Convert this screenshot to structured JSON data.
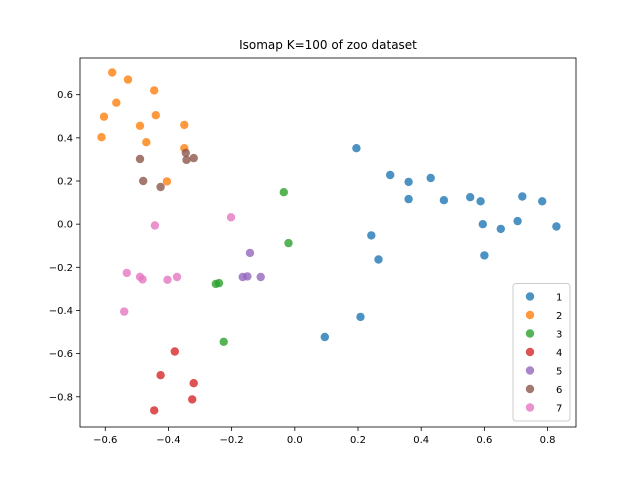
{
  "chart_data": {
    "type": "scatter",
    "title": "Isomap K=100 of zoo dataset",
    "xlabel": "",
    "ylabel": "",
    "xlim": [
      -0.68,
      0.89
    ],
    "ylim": [
      -0.94,
      0.77
    ],
    "xticks": [
      -0.6,
      -0.4,
      -0.2,
      0.0,
      0.2,
      0.4,
      0.6,
      0.8
    ],
    "xtick_labels": [
      "−0.6",
      "−0.4",
      "−0.2",
      "0.0",
      "0.2",
      "0.4",
      "0.6",
      "0.8"
    ],
    "yticks": [
      0.6,
      0.4,
      0.2,
      0.0,
      -0.2,
      -0.4,
      -0.6,
      -0.8
    ],
    "ytick_labels": [
      "0.6",
      "0.4",
      "0.2",
      "0.0",
      "−0.2",
      "−0.4",
      "−0.6",
      "−0.8"
    ],
    "grid": false,
    "legend_position": "lower-right",
    "series": [
      {
        "name": "1",
        "color": "#1f77b4",
        "points": [
          [
            0.195,
            0.352
          ],
          [
            0.302,
            0.228
          ],
          [
            0.36,
            0.196
          ],
          [
            0.43,
            0.214
          ],
          [
            0.36,
            0.116
          ],
          [
            0.472,
            0.111
          ],
          [
            0.555,
            0.125
          ],
          [
            0.588,
            0.106
          ],
          [
            0.72,
            0.128
          ],
          [
            0.783,
            0.106
          ],
          [
            0.242,
            -0.052
          ],
          [
            0.265,
            -0.164
          ],
          [
            0.595,
            0.0
          ],
          [
            0.652,
            -0.022
          ],
          [
            0.705,
            0.014
          ],
          [
            0.828,
            -0.011
          ],
          [
            0.6,
            -0.145
          ],
          [
            0.208,
            -0.43
          ],
          [
            0.095,
            -0.523
          ]
        ]
      },
      {
        "name": "2",
        "color": "#ff7f0e",
        "points": [
          [
            -0.578,
            0.703
          ],
          [
            -0.528,
            0.67
          ],
          [
            -0.565,
            0.563
          ],
          [
            -0.445,
            0.62
          ],
          [
            -0.604,
            0.498
          ],
          [
            -0.44,
            0.505
          ],
          [
            -0.49,
            0.456
          ],
          [
            -0.35,
            0.46
          ],
          [
            -0.612,
            0.403
          ],
          [
            -0.47,
            0.38
          ],
          [
            -0.35,
            0.352
          ],
          [
            -0.405,
            0.198
          ]
        ]
      },
      {
        "name": "3",
        "color": "#2ca02c",
        "points": [
          [
            -0.035,
            0.148
          ],
          [
            -0.02,
            -0.088
          ],
          [
            -0.24,
            -0.273
          ],
          [
            -0.25,
            -0.277
          ],
          [
            -0.225,
            -0.545
          ]
        ]
      },
      {
        "name": "4",
        "color": "#d62728",
        "points": [
          [
            -0.38,
            -0.59
          ],
          [
            -0.425,
            -0.7
          ],
          [
            -0.32,
            -0.737
          ],
          [
            -0.325,
            -0.812
          ],
          [
            -0.445,
            -0.863
          ]
        ]
      },
      {
        "name": "5",
        "color": "#9467bd",
        "points": [
          [
            -0.142,
            -0.133
          ],
          [
            -0.165,
            -0.245
          ],
          [
            -0.15,
            -0.242
          ],
          [
            -0.108,
            -0.245
          ]
        ]
      },
      {
        "name": "6",
        "color": "#8c564b",
        "points": [
          [
            -0.345,
            0.33
          ],
          [
            -0.49,
            0.302
          ],
          [
            -0.32,
            0.306
          ],
          [
            -0.343,
            0.298
          ],
          [
            -0.48,
            0.2
          ],
          [
            -0.425,
            0.172
          ]
        ]
      },
      {
        "name": "7",
        "color": "#e377c2",
        "points": [
          [
            -0.202,
            0.032
          ],
          [
            -0.443,
            -0.006
          ],
          [
            -0.532,
            -0.226
          ],
          [
            -0.49,
            -0.244
          ],
          [
            -0.482,
            -0.256
          ],
          [
            -0.373,
            -0.245
          ],
          [
            -0.403,
            -0.258
          ],
          [
            -0.54,
            -0.405
          ]
        ]
      }
    ]
  }
}
